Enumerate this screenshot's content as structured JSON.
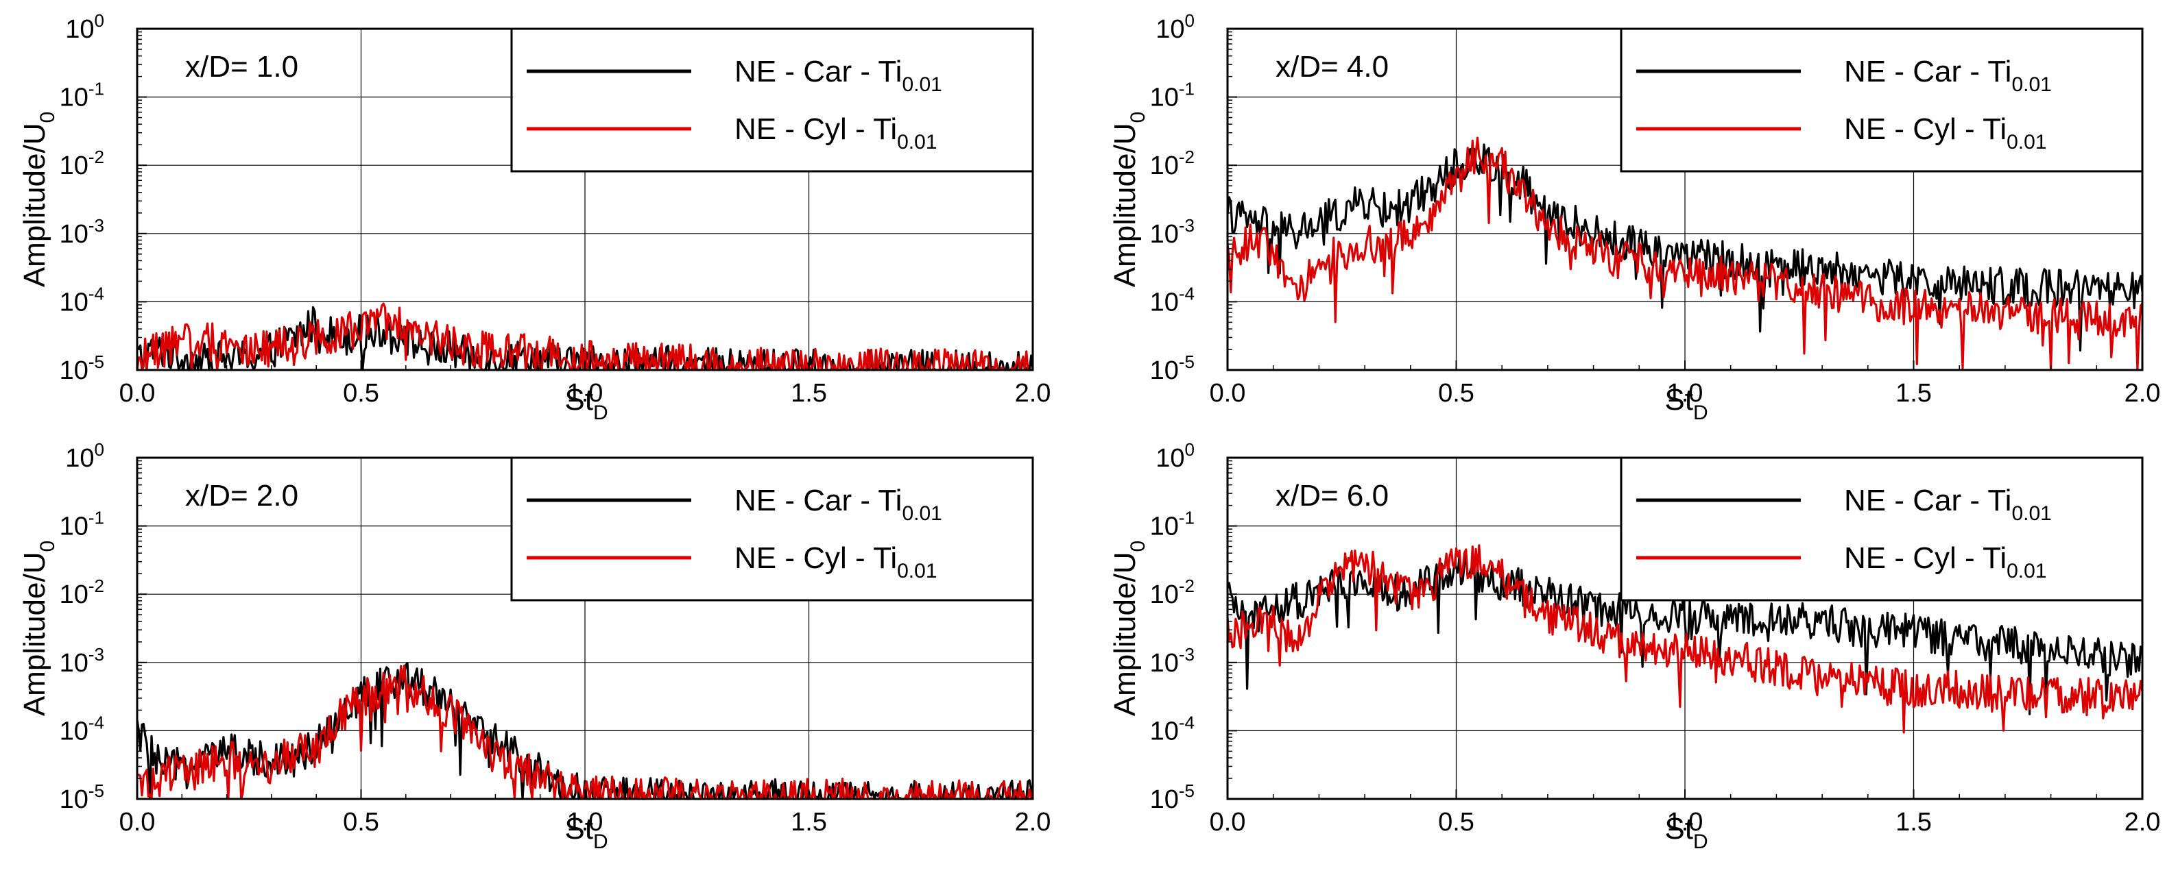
{
  "chart_data": [
    {
      "type": "line",
      "annotation": "x/D= 1.0",
      "xlabel": "St",
      "xlabel_sub": "D",
      "ylabel": "Amplitude/U",
      "ylabel_sub": "0",
      "xlim": [
        0.0,
        2.0
      ],
      "ylim": [
        1e-05,
        1
      ],
      "yscale": "log",
      "xticks": [
        "0.0",
        "0.5",
        "1.0",
        "1.5",
        "2.0"
      ],
      "yticks": [
        {
          "base": "10",
          "exp": "-5"
        },
        {
          "base": "10",
          "exp": "-4"
        },
        {
          "base": "10",
          "exp": "-3"
        },
        {
          "base": "10",
          "exp": "-2"
        },
        {
          "base": "10",
          "exp": "-1"
        },
        {
          "base": "10",
          "exp": "0"
        }
      ],
      "grid": true,
      "legend_position": "top-right",
      "series": [
        {
          "name": "NE - Car - Ti",
          "name_sub": "0.01",
          "color": "#000000",
          "x": [
            0.0,
            0.05,
            0.1,
            0.15,
            0.2,
            0.25,
            0.3,
            0.35,
            0.4,
            0.45,
            0.5,
            0.55,
            0.6,
            0.65,
            0.7,
            0.75,
            0.8,
            0.85,
            0.9,
            0.95,
            1.0,
            1.1,
            1.2,
            1.3,
            1.4,
            1.5,
            1.6,
            1.7,
            1.8,
            1.9,
            2.0
          ],
          "y": [
            1.5e-05,
            2e-05,
            1.5e-05,
            1.3e-05,
            1.5e-05,
            1.5e-05,
            2e-05,
            3e-05,
            5e-05,
            3e-05,
            3.5e-05,
            4e-05,
            3e-05,
            2e-05,
            2e-05,
            1.5e-05,
            1.5e-05,
            1.5e-05,
            1.5e-05,
            1.3e-05,
            1.3e-05,
            1.2e-05,
            1.2e-05,
            1.1e-05,
            1.1e-05,
            1.1e-05,
            1.05e-05,
            1.05e-05,
            1.05e-05,
            1.05e-05,
            1.05e-05
          ]
        },
        {
          "name": "NE - Cyl - Ti",
          "name_sub": "0.01",
          "color": "#dd0000",
          "x": [
            0.0,
            0.05,
            0.1,
            0.15,
            0.2,
            0.25,
            0.3,
            0.35,
            0.4,
            0.45,
            0.5,
            0.55,
            0.6,
            0.65,
            0.7,
            0.75,
            0.8,
            0.85,
            0.9,
            0.95,
            1.0,
            1.1,
            1.2,
            1.3,
            1.4,
            1.5,
            1.6,
            1.7,
            1.8,
            1.9,
            2.0
          ],
          "y": [
            1.5e-05,
            2e-05,
            2.5e-05,
            3e-05,
            2.5e-05,
            2e-05,
            2e-05,
            2.5e-05,
            3e-05,
            3.5e-05,
            4e-05,
            5e-05,
            4.5e-05,
            3e-05,
            2.5e-05,
            2e-05,
            2e-05,
            1.8e-05,
            1.8e-05,
            1.6e-05,
            1.5e-05,
            1.4e-05,
            1.3e-05,
            1.2e-05,
            1.2e-05,
            1.1e-05,
            1.1e-05,
            1.1e-05,
            1.1e-05,
            1.1e-05,
            1.05e-05
          ]
        }
      ]
    },
    {
      "type": "line",
      "annotation": "x/D= 4.0",
      "xlabel": "St",
      "xlabel_sub": "D",
      "ylabel": "Amplitude/U",
      "ylabel_sub": "0",
      "xlim": [
        0.0,
        2.0
      ],
      "ylim": [
        1e-05,
        1
      ],
      "yscale": "log",
      "xticks": [
        "0.0",
        "0.5",
        "1.0",
        "1.5",
        "2.0"
      ],
      "yticks": [
        {
          "base": "10",
          "exp": "-5"
        },
        {
          "base": "10",
          "exp": "-4"
        },
        {
          "base": "10",
          "exp": "-3"
        },
        {
          "base": "10",
          "exp": "-2"
        },
        {
          "base": "10",
          "exp": "-1"
        },
        {
          "base": "10",
          "exp": "0"
        }
      ],
      "grid": true,
      "legend_position": "top-right",
      "series": [
        {
          "name": "NE - Car - Ti",
          "name_sub": "0.01",
          "color": "#000000",
          "x": [
            0.0,
            0.05,
            0.1,
            0.15,
            0.2,
            0.25,
            0.3,
            0.35,
            0.4,
            0.45,
            0.5,
            0.55,
            0.6,
            0.65,
            0.7,
            0.75,
            0.8,
            0.85,
            0.9,
            0.95,
            1.0,
            1.1,
            1.2,
            1.3,
            1.4,
            1.5,
            1.6,
            1.7,
            1.8,
            1.9,
            2.0
          ],
          "y": [
            0.002,
            0.0015,
            0.0012,
            0.001,
            0.0015,
            0.002,
            0.003,
            0.002,
            0.003,
            0.005,
            0.01,
            0.012,
            0.01,
            0.005,
            0.002,
            0.0015,
            0.001,
            0.0008,
            0.0007,
            0.0006,
            0.0005,
            0.0004,
            0.00035,
            0.0003,
            0.00025,
            0.0002,
            0.00019,
            0.00017,
            0.00016,
            0.00015,
            0.00014
          ]
        },
        {
          "name": "NE - Cyl - Ti",
          "name_sub": "0.01",
          "color": "#dd0000",
          "x": [
            0.0,
            0.05,
            0.1,
            0.15,
            0.2,
            0.25,
            0.3,
            0.35,
            0.4,
            0.45,
            0.5,
            0.55,
            0.6,
            0.65,
            0.7,
            0.75,
            0.8,
            0.85,
            0.9,
            0.95,
            1.0,
            1.1,
            1.2,
            1.3,
            1.4,
            1.5,
            1.6,
            1.7,
            1.8,
            1.9,
            2.0
          ],
          "y": [
            0.0005,
            0.0008,
            0.0006,
            0.0001,
            0.0004,
            0.0005,
            0.0008,
            0.0006,
            0.001,
            0.002,
            0.008,
            0.015,
            0.01,
            0.003,
            0.0015,
            0.0008,
            0.0006,
            0.0004,
            0.0004,
            0.0003,
            0.0003,
            0.00025,
            0.0002,
            0.00015,
            0.0001,
            9e-05,
            8e-05,
            7e-05,
            6e-05,
            6e-05,
            5e-05
          ]
        }
      ]
    },
    {
      "type": "line",
      "annotation": "x/D= 2.0",
      "xlabel": "St",
      "xlabel_sub": "D",
      "ylabel": "Amplitude/U",
      "ylabel_sub": "0",
      "xlim": [
        0.0,
        2.0
      ],
      "ylim": [
        1e-05,
        1
      ],
      "yscale": "log",
      "xticks": [
        "0.0",
        "0.5",
        "1.0",
        "1.5",
        "2.0"
      ],
      "yticks": [
        {
          "base": "10",
          "exp": "-5"
        },
        {
          "base": "10",
          "exp": "-4"
        },
        {
          "base": "10",
          "exp": "-3"
        },
        {
          "base": "10",
          "exp": "-2"
        },
        {
          "base": "10",
          "exp": "-1"
        },
        {
          "base": "10",
          "exp": "0"
        }
      ],
      "grid": true,
      "legend_position": "top-right",
      "series": [
        {
          "name": "NE - Car - Ti",
          "name_sub": "0.01",
          "color": "#000000",
          "x": [
            0.0,
            0.05,
            0.1,
            0.15,
            0.2,
            0.25,
            0.3,
            0.35,
            0.4,
            0.45,
            0.5,
            0.55,
            0.6,
            0.65,
            0.7,
            0.75,
            0.8,
            0.85,
            0.9,
            0.95,
            1.0,
            1.1,
            1.2,
            1.3,
            1.4,
            1.5,
            1.6,
            1.7,
            1.8,
            1.9,
            2.0
          ],
          "y": [
            0.0001,
            3e-05,
            3e-05,
            4e-05,
            5e-05,
            4e-05,
            4e-05,
            4e-05,
            6e-05,
            0.0002,
            0.0003,
            0.0005,
            0.0006,
            0.0004,
            0.0003,
            0.0001,
            8e-05,
            4e-05,
            2.5e-05,
            1.5e-05,
            1.2e-05,
            1.1e-05,
            1.05e-05,
            1.05e-05,
            1.05e-05,
            1.05e-05,
            1e-05,
            1e-05,
            1e-05,
            1e-05,
            1e-05
          ]
        },
        {
          "name": "NE - Cyl - Ti",
          "name_sub": "0.01",
          "color": "#dd0000",
          "x": [
            0.0,
            0.05,
            0.1,
            0.15,
            0.2,
            0.25,
            0.3,
            0.35,
            0.4,
            0.45,
            0.5,
            0.55,
            0.6,
            0.65,
            0.7,
            0.75,
            0.8,
            0.85,
            0.9,
            0.95,
            1.0,
            1.1,
            1.2,
            1.3,
            1.4,
            1.5,
            1.6,
            1.7,
            1.8,
            1.9,
            2.0
          ],
          "y": [
            1.5e-05,
            2e-05,
            3e-05,
            3e-05,
            4e-05,
            3e-05,
            3e-05,
            5e-05,
            5e-05,
            0.00015,
            0.0003,
            0.0004,
            0.0005,
            0.0003,
            0.0002,
            8e-05,
            4e-05,
            3e-05,
            2e-05,
            1.5e-05,
            1.2e-05,
            1.1e-05,
            1.1e-05,
            1.05e-05,
            1.05e-05,
            1.05e-05,
            1.05e-05,
            1e-05,
            1e-05,
            1e-05,
            1e-05
          ]
        }
      ]
    },
    {
      "type": "line",
      "annotation": "x/D= 6.0",
      "xlabel": "St",
      "xlabel_sub": "D",
      "ylabel": "Amplitude/U",
      "ylabel_sub": "0",
      "xlim": [
        0.0,
        2.0
      ],
      "ylim": [
        1e-05,
        1
      ],
      "yscale": "log",
      "xticks": [
        "0.0",
        "0.5",
        "1.0",
        "1.5",
        "2.0"
      ],
      "yticks": [
        {
          "base": "10",
          "exp": "-5"
        },
        {
          "base": "10",
          "exp": "-4"
        },
        {
          "base": "10",
          "exp": "-3"
        },
        {
          "base": "10",
          "exp": "-2"
        },
        {
          "base": "10",
          "exp": "-1"
        },
        {
          "base": "10",
          "exp": "0"
        }
      ],
      "grid": true,
      "legend_position": "top-right",
      "series": [
        {
          "name": "NE - Car - Ti",
          "name_sub": "0.01",
          "color": "#000000",
          "x": [
            0.0,
            0.05,
            0.1,
            0.15,
            0.2,
            0.25,
            0.3,
            0.35,
            0.4,
            0.45,
            0.5,
            0.55,
            0.6,
            0.65,
            0.7,
            0.75,
            0.8,
            0.85,
            0.9,
            0.95,
            1.0,
            1.1,
            1.2,
            1.3,
            1.4,
            1.5,
            1.6,
            1.7,
            1.8,
            1.9,
            2.0
          ],
          "y": [
            0.008,
            0.005,
            0.006,
            0.008,
            0.01,
            0.015,
            0.015,
            0.01,
            0.012,
            0.015,
            0.02,
            0.02,
            0.015,
            0.012,
            0.01,
            0.008,
            0.006,
            0.006,
            0.006,
            0.005,
            0.005,
            0.004,
            0.004,
            0.004,
            0.003,
            0.003,
            0.002,
            0.002,
            0.0015,
            0.0012,
            0.001
          ]
        },
        {
          "name": "NE - Cyl - Ti",
          "name_sub": "0.01",
          "color": "#dd0000",
          "x": [
            0.0,
            0.05,
            0.1,
            0.15,
            0.2,
            0.25,
            0.3,
            0.35,
            0.4,
            0.45,
            0.5,
            0.55,
            0.6,
            0.65,
            0.7,
            0.75,
            0.8,
            0.85,
            0.9,
            0.95,
            1.0,
            1.1,
            1.2,
            1.3,
            1.4,
            1.5,
            1.6,
            1.7,
            1.8,
            1.9,
            2.0
          ],
          "y": [
            0.003,
            0.003,
            0.004,
            0.002,
            0.01,
            0.02,
            0.03,
            0.015,
            0.01,
            0.015,
            0.03,
            0.03,
            0.02,
            0.008,
            0.005,
            0.004,
            0.003,
            0.002,
            0.002,
            0.0015,
            0.0015,
            0.0012,
            0.0008,
            0.0006,
            0.0005,
            0.0004,
            0.0004,
            0.00035,
            0.00033,
            0.00031,
            0.0003
          ]
        }
      ]
    }
  ]
}
